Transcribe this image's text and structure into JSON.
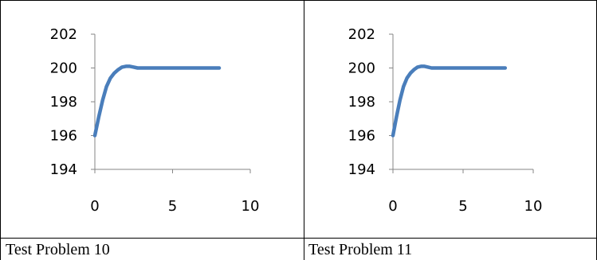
{
  "chart_data": [
    {
      "type": "line",
      "caption": "Test Problem 10",
      "xlim": [
        0,
        10
      ],
      "ylim": [
        194,
        202
      ],
      "x_ticks": [
        0,
        5,
        10
      ],
      "y_ticks": [
        194,
        196,
        198,
        200,
        202
      ],
      "grid": false,
      "series": [
        {
          "color": "#4a7ebb",
          "x": [
            0,
            0.25,
            0.5,
            0.75,
            1.0,
            1.25,
            1.5,
            1.75,
            2.0,
            2.25,
            2.5,
            2.75,
            3.0,
            4.0,
            5.0,
            6.0,
            7.0,
            8.0
          ],
          "y": [
            196.0,
            197.1,
            198.1,
            198.9,
            199.4,
            199.7,
            199.9,
            200.05,
            200.1,
            200.1,
            200.05,
            200.0,
            200.0,
            200.0,
            200.0,
            200.0,
            200.0,
            200.0
          ]
        }
      ]
    },
    {
      "type": "line",
      "caption": "Test Problem 11",
      "xlim": [
        0,
        10
      ],
      "ylim": [
        194,
        202
      ],
      "x_ticks": [
        0,
        5,
        10
      ],
      "y_ticks": [
        194,
        196,
        198,
        200,
        202
      ],
      "grid": false,
      "series": [
        {
          "color": "#4a7ebb",
          "x": [
            0,
            0.25,
            0.5,
            0.75,
            1.0,
            1.25,
            1.5,
            1.75,
            2.0,
            2.25,
            2.5,
            2.75,
            3.0,
            4.0,
            5.0,
            6.0,
            7.0,
            8.0
          ],
          "y": [
            196.0,
            197.1,
            198.1,
            198.9,
            199.4,
            199.7,
            199.9,
            200.05,
            200.1,
            200.1,
            200.05,
            200.0,
            200.0,
            200.0,
            200.0,
            200.0,
            200.0,
            200.0
          ]
        }
      ]
    }
  ]
}
